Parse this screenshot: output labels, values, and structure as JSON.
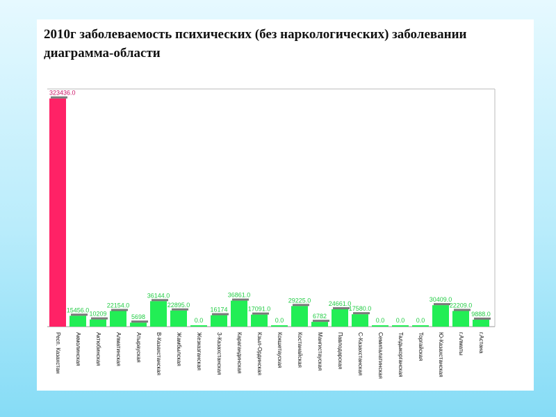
{
  "title": "2010г заболеваемость психических (без наркологических) заболевании диаграмма-области",
  "colors": {
    "highlight": "#ff2266",
    "highlight_label": "#cc1166",
    "bar": "#22ee55",
    "bar_label": "#22cc44",
    "bar_cap": "#7a7a7a",
    "axis": "#999999"
  },
  "chart_data": {
    "type": "bar",
    "title": "2010г заболеваемость психических (без наркологических) заболевании диаграмма-области",
    "xlabel": "",
    "ylabel": "",
    "ylim": [
      0,
      330000
    ],
    "grid": false,
    "legend": "none",
    "categories": [
      "Респ. Казахстан",
      "Акмолинская",
      "Актюбинская",
      "Алматинская",
      "Атырауская",
      "В-Казахстанская",
      "Жамбылская",
      "Жезказганская",
      "З-Казахстанская",
      "Карагандинская",
      "Кзыл-Ординская",
      "Кокшетауская",
      "Костанайская",
      "Мангистауская",
      "Павлодарская",
      "С-Казахстанская",
      "Семипалатинская",
      "Талдыкорганская",
      "Торгайская",
      "Ю-Казахстанская",
      "г.Алматы",
      "г.Астана"
    ],
    "values": [
      323436,
      15456,
      10209,
      22154,
      5698,
      36144,
      22895,
      0,
      16174,
      36861,
      17091,
      0,
      29225,
      6782,
      24661,
      17580,
      0,
      0,
      0,
      30409,
      22209,
      9888
    ],
    "value_labels": [
      "323436.0",
      "15456.0",
      "10209",
      "22154.0",
      "5698",
      "36144.0",
      "22895.0",
      "0.0",
      "16174",
      "36861.0",
      "17091.0",
      "0.0",
      "29225.0",
      "6782",
      "24661.0",
      "17580.0",
      "0.0",
      "0.0",
      "0.0",
      "30409.0",
      "22209.0",
      "9888.0"
    ],
    "highlight_index": 0
  }
}
